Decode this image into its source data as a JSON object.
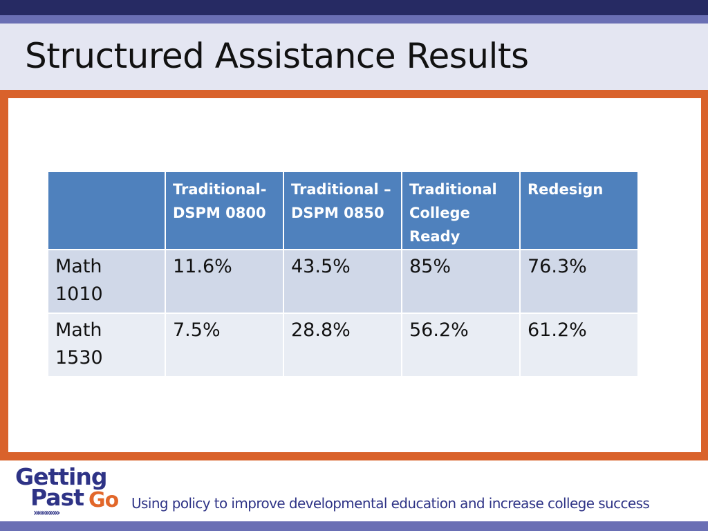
{
  "slide": {
    "title": "Structured Assistance Results"
  },
  "table": {
    "columns": [
      "",
      "Traditional-\nDSPM 0800",
      "Traditional –\nDSPM 0850",
      "Traditional\nCollege\nReady",
      "Redesign"
    ],
    "rows": [
      {
        "label": "Math\n1010",
        "values": [
          "11.6%",
          "43.5%",
          "85%",
          "76.3%"
        ]
      },
      {
        "label": "Math\n1530",
        "values": [
          "7.5%",
          "28.8%",
          "56.2%",
          "61.2%"
        ]
      }
    ]
  },
  "footer": {
    "logo_line1": "Getting",
    "logo_line2": "Past",
    "logo_go": "Go",
    "logo_chevrons": "»»»»»»",
    "tagline": "Using policy to improve developmental education and increase college success"
  },
  "colors": {
    "top_bar": "#262a63",
    "accent_orange": "#d9622b",
    "header_blue": "#4f81bd",
    "row_a": "#d0d8e8",
    "row_b": "#e9edf4",
    "brand_navy": "#2e3386"
  }
}
